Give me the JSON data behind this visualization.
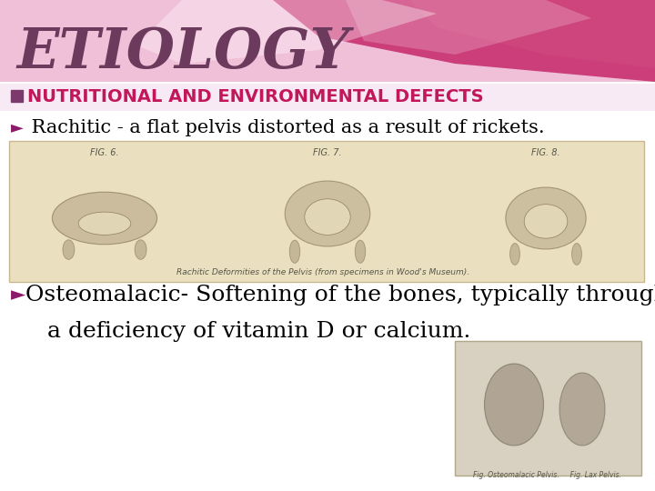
{
  "title": "ETIOLOGY",
  "title_color": "#6B3A5C",
  "title_fontsize": 44,
  "subtitle": "NUTRITIONAL AND ENVIRONMENTAL DEFECTS",
  "subtitle_color": "#C2185B",
  "subtitle_fontsize": 14,
  "bullet1_text": " Rachitic - a flat pelvis distorted as a result of rickets.",
  "bullet1_fontsize": 15,
  "bullet1_color": "#000000",
  "bullet2_text1": "Osteomalacic- Softening of the bones, typically through",
  "bullet2_text2": "   a deficiency of vitamin D or calcium.",
  "bullet2_fontsize": 18,
  "bullet2_color": "#000000",
  "arrow_color": "#8B1A6B",
  "bg_color": "#FFFFFF",
  "header_pink_light": "#F0C0D8",
  "header_pink_mid": "#E080A8",
  "header_pink_dark": "#C83070",
  "header_pink_right": "#D04880",
  "wave_white": "#FFFFFF",
  "subtitle_bg": "#F8EAF4",
  "checkbox_fill": "#7B3A6B",
  "img1_bg": "#EAE0C0",
  "img1_border": "#C8B890",
  "img2_bg": "#D8D0C0",
  "img2_border": "#B0A888",
  "caption_color": "#555548",
  "fig_label_color": "#555548"
}
